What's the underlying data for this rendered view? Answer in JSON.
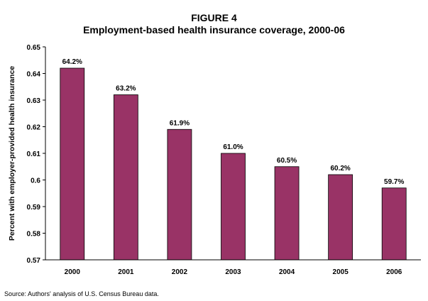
{
  "figure": {
    "label": "FIGURE 4",
    "title": "Employment-based health insurance coverage, 2000-06",
    "source": "Source: Authors' analysis of U.S. Census Bureau data."
  },
  "chart_data": {
    "type": "bar",
    "title": "Employment-based health insurance coverage, 2000-06",
    "categories": [
      "2000",
      "2001",
      "2002",
      "2003",
      "2004",
      "2005",
      "2006"
    ],
    "values": [
      0.642,
      0.632,
      0.619,
      0.61,
      0.605,
      0.602,
      0.597
    ],
    "data_labels": [
      "64.2%",
      "63.2%",
      "61.9%",
      "61.0%",
      "60.5%",
      "60.2%",
      "59.7%"
    ],
    "ylabel": "Percent with employer-provided health insurance",
    "xlabel": "",
    "ylim": [
      0.57,
      0.65
    ],
    "yticks": [
      "0.57",
      "0.58",
      "0.59",
      "0.6",
      "0.61",
      "0.62",
      "0.63",
      "0.64",
      "0.65"
    ],
    "ytick_values": [
      0.57,
      0.58,
      0.59,
      0.6,
      0.61,
      0.62,
      0.63,
      0.64,
      0.65
    ],
    "bar_color": "#993366",
    "grid": false,
    "legend": "none"
  }
}
